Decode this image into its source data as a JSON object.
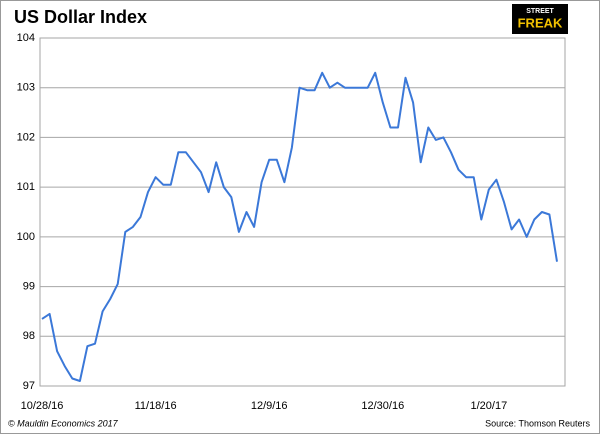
{
  "chart_data": {
    "type": "line",
    "title": "US Dollar Index",
    "logo": {
      "top": "STREET",
      "bottom": "FREAK"
    },
    "footer_left": "© Mauldin Economics 2017",
    "source": "Source: Thomson Reuters",
    "categories": [
      "10/28/16",
      null,
      null,
      null,
      null,
      null,
      null,
      null,
      null,
      null,
      null,
      null,
      null,
      null,
      null,
      "11/18/16",
      null,
      null,
      null,
      null,
      null,
      null,
      null,
      null,
      null,
      null,
      null,
      null,
      null,
      null,
      "12/9/16",
      null,
      null,
      null,
      null,
      null,
      null,
      null,
      null,
      null,
      null,
      null,
      null,
      null,
      null,
      "12/30/16",
      null,
      null,
      null,
      null,
      null,
      null,
      null,
      null,
      null,
      null,
      null,
      null,
      null,
      "1/20/17",
      null,
      null,
      null,
      null,
      null,
      null,
      null,
      null,
      null
    ],
    "series": [
      {
        "name": "US Dollar Index",
        "color": "#3b78d8",
        "values": [
          98.35,
          98.45,
          97.7,
          97.4,
          97.15,
          97.1,
          97.8,
          97.85,
          98.5,
          98.75,
          99.05,
          100.1,
          100.2,
          100.4,
          100.9,
          101.2,
          101.05,
          101.05,
          101.7,
          101.7,
          101.5,
          101.3,
          100.9,
          101.5,
          101.0,
          100.8,
          100.1,
          100.5,
          100.2,
          101.1,
          101.55,
          101.55,
          101.1,
          101.8,
          103.0,
          102.95,
          102.95,
          103.3,
          103.0,
          103.1,
          103.0,
          103.0,
          103.0,
          103.0,
          103.3,
          102.7,
          102.2,
          102.2,
          103.2,
          102.7,
          101.5,
          102.2,
          101.95,
          102.0,
          101.7,
          101.35,
          101.2,
          101.2,
          100.35,
          100.95,
          101.15,
          100.7,
          100.15,
          100.35,
          100.0,
          100.35,
          100.5,
          100.45,
          99.5
        ]
      }
    ],
    "ylim": [
      97,
      104
    ],
    "yticks": [
      97,
      98,
      99,
      100,
      101,
      102,
      103,
      104
    ],
    "grid": true
  }
}
